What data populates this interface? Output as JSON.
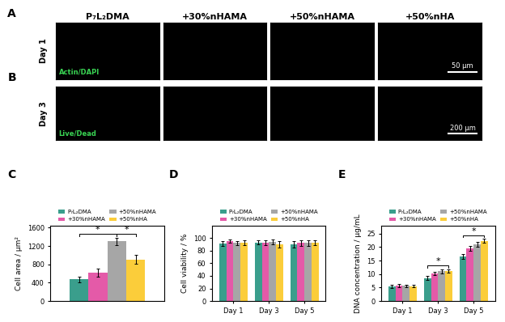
{
  "image_panels": {
    "columns": [
      "P₇L₂DMA",
      "+30%nHAMA",
      "+50%nHAMA",
      "+50%nHA"
    ],
    "rows": [
      {
        "letter": "A",
        "label": "Day 1",
        "stain": "Actin/DAPI",
        "color": "#39d353",
        "scale_bar": "50 μm"
      },
      {
        "letter": "B",
        "label": "Day 3",
        "stain": "Live/Dead",
        "color": "#39d353",
        "scale_bar": "200 μm"
      }
    ]
  },
  "chart_panel_letters": [
    "C",
    "D",
    "E"
  ],
  "chart_data": [
    {
      "type": "bar",
      "categories": [
        null
      ],
      "ylabel": "Cell area / μm²",
      "ylim": [
        0,
        1650
      ],
      "yticks": [
        0,
        400,
        800,
        1200,
        1600
      ],
      "legend": "upper center",
      "series": [
        {
          "name": "P₇L₂DMA",
          "color": "#3a9e8c",
          "values": [
            470
          ],
          "errors": [
            60
          ]
        },
        {
          "name": "+30%nHAMA",
          "color": "#e45aa8",
          "values": [
            620
          ],
          "errors": [
            80
          ]
        },
        {
          "name": "+50%nHAMA",
          "color": "#a6a6a6",
          "values": [
            1300
          ],
          "errors": [
            80
          ]
        },
        {
          "name": "+50%nHA",
          "color": "#fbcd3a",
          "values": [
            910
          ],
          "errors": [
            90
          ]
        }
      ],
      "significance": [
        {
          "category": null,
          "from": "P₇L₂DMA",
          "to": "+50%nHAMA",
          "label": "*"
        },
        {
          "category": null,
          "from": "+50%nHAMA",
          "to": "+50%nHA",
          "label": "*"
        }
      ]
    },
    {
      "type": "bar",
      "categories": [
        "Day 1",
        "Day 3",
        "Day 5"
      ],
      "ylabel": "Cell viability / %",
      "ylim": [
        0,
        120
      ],
      "yticks": [
        0,
        20,
        40,
        60,
        80,
        100
      ],
      "legend": "upper center",
      "series": [
        {
          "name": "P₇L₂DMA",
          "color": "#3a9e8c",
          "values": [
            91,
            93,
            90
          ],
          "errors": [
            4,
            3,
            5
          ]
        },
        {
          "name": "+30%nHAMA",
          "color": "#e45aa8",
          "values": [
            95,
            93,
            92
          ],
          "errors": [
            3,
            4,
            5
          ]
        },
        {
          "name": "+50%nHAMA",
          "color": "#a6a6a6",
          "values": [
            92,
            94,
            92
          ],
          "errors": [
            3,
            4,
            4
          ]
        },
        {
          "name": "+50%nHA",
          "color": "#fbcd3a",
          "values": [
            93,
            90,
            93
          ],
          "errors": [
            4,
            5,
            4
          ]
        }
      ]
    },
    {
      "type": "bar",
      "categories": [
        "Day 1",
        "Day 3",
        "Day 5"
      ],
      "ylabel": "DNA concentration / μg/mL",
      "ylim": [
        0,
        28
      ],
      "yticks": [
        0,
        5,
        10,
        15,
        20,
        25
      ],
      "legend": "upper center",
      "series": [
        {
          "name": "P₇L₂DMA",
          "color": "#3a9e8c",
          "values": [
            5.5,
            8.5,
            16.5
          ],
          "errors": [
            0.6,
            0.7,
            1.0
          ]
        },
        {
          "name": "+30%nHAMA",
          "color": "#e45aa8",
          "values": [
            5.8,
            10.3,
            19.5
          ],
          "errors": [
            0.6,
            0.6,
            0.8
          ]
        },
        {
          "name": "+50%nHAMA",
          "color": "#a6a6a6",
          "values": [
            5.6,
            11.0,
            21.0
          ],
          "errors": [
            0.5,
            0.7,
            0.8
          ]
        },
        {
          "name": "+50%nHA",
          "color": "#fbcd3a",
          "values": [
            5.5,
            11.0,
            22.3
          ],
          "errors": [
            0.5,
            0.6,
            0.7
          ]
        }
      ],
      "significance": [
        {
          "category": "Day 3",
          "from": "P₇L₂DMA",
          "to": "+50%nHA",
          "label": "*"
        },
        {
          "category": "Day 5",
          "from": "P₇L₂DMA",
          "to": "+50%nHA",
          "label": "*"
        }
      ]
    }
  ]
}
